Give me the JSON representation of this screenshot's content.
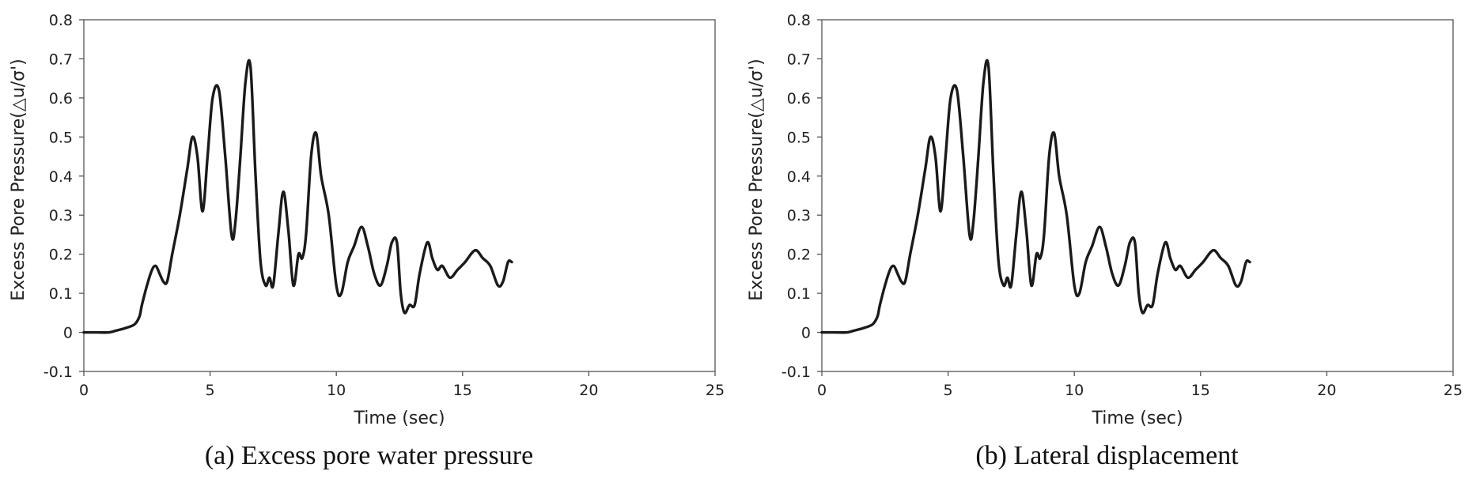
{
  "chart_data": [
    {
      "type": "line",
      "caption": "(a) Excess pore water pressure",
      "xlabel": "Time (sec)",
      "ylabel": "Excess Pore Pressure(△u/σ')",
      "xlim": [
        0,
        25
      ],
      "ylim": [
        -0.1,
        0.8
      ],
      "xticks": [
        "0",
        "5",
        "10",
        "15",
        "20",
        "25"
      ],
      "yticks": [
        "-0.1",
        "0",
        "0.1",
        "0.2",
        "0.3",
        "0.4",
        "0.5",
        "0.6",
        "0.7",
        "0.8"
      ],
      "grid": false,
      "series": [
        {
          "color": "#1a1a1a",
          "x": [
            0,
            0.5,
            1.0,
            1.3,
            1.6,
            2.0,
            2.2,
            2.3,
            2.5,
            2.7,
            2.85,
            3.0,
            3.15,
            3.3,
            3.5,
            3.8,
            4.1,
            4.3,
            4.5,
            4.7,
            4.9,
            5.1,
            5.35,
            5.6,
            5.85,
            6.0,
            6.2,
            6.4,
            6.6,
            6.8,
            7.0,
            7.2,
            7.35,
            7.5,
            7.7,
            7.9,
            8.1,
            8.3,
            8.5,
            8.65,
            8.8,
            9.0,
            9.2,
            9.4,
            9.7,
            10.0,
            10.2,
            10.45,
            10.7,
            11.0,
            11.25,
            11.5,
            11.75,
            12.0,
            12.2,
            12.4,
            12.55,
            12.7,
            12.9,
            13.1,
            13.3,
            13.6,
            13.8,
            14.0,
            14.2,
            14.5,
            14.8,
            15.1,
            15.5,
            15.8,
            16.1,
            16.4,
            16.6,
            16.8,
            16.95
          ],
          "values": [
            0,
            0,
            0,
            0.005,
            0.01,
            0.02,
            0.04,
            0.07,
            0.12,
            0.16,
            0.17,
            0.15,
            0.13,
            0.13,
            0.2,
            0.3,
            0.42,
            0.5,
            0.45,
            0.31,
            0.45,
            0.6,
            0.62,
            0.45,
            0.25,
            0.28,
            0.45,
            0.64,
            0.68,
            0.4,
            0.18,
            0.12,
            0.14,
            0.12,
            0.25,
            0.36,
            0.26,
            0.12,
            0.2,
            0.19,
            0.25,
            0.45,
            0.51,
            0.4,
            0.3,
            0.12,
            0.1,
            0.18,
            0.22,
            0.27,
            0.22,
            0.15,
            0.12,
            0.17,
            0.23,
            0.23,
            0.1,
            0.05,
            0.07,
            0.07,
            0.15,
            0.23,
            0.19,
            0.16,
            0.17,
            0.14,
            0.16,
            0.18,
            0.21,
            0.19,
            0.17,
            0.12,
            0.13,
            0.18,
            0.18
          ]
        }
      ]
    },
    {
      "type": "line",
      "caption": "(b) Lateral displacement",
      "xlabel": "Time (sec)",
      "ylabel": "Excess Pore Pressure(△u/σ')",
      "xlim": [
        0,
        25
      ],
      "ylim": [
        -0.1,
        0.8
      ],
      "xticks": [
        "0",
        "5",
        "10",
        "15",
        "20",
        "25"
      ],
      "yticks": [
        "-0.1",
        "0",
        "0.1",
        "0.2",
        "0.3",
        "0.4",
        "0.5",
        "0.6",
        "0.7",
        "0.8"
      ],
      "grid": false,
      "series": [
        {
          "color": "#1a1a1a",
          "x": [
            0,
            0.5,
            1.0,
            1.3,
            1.6,
            2.0,
            2.2,
            2.3,
            2.5,
            2.7,
            2.85,
            3.0,
            3.15,
            3.3,
            3.5,
            3.8,
            4.1,
            4.3,
            4.5,
            4.7,
            4.9,
            5.1,
            5.35,
            5.6,
            5.85,
            6.0,
            6.2,
            6.4,
            6.6,
            6.8,
            7.0,
            7.2,
            7.35,
            7.5,
            7.7,
            7.9,
            8.1,
            8.3,
            8.5,
            8.65,
            8.8,
            9.0,
            9.2,
            9.4,
            9.7,
            10.0,
            10.2,
            10.45,
            10.7,
            11.0,
            11.25,
            11.5,
            11.75,
            12.0,
            12.2,
            12.4,
            12.55,
            12.7,
            12.9,
            13.1,
            13.3,
            13.6,
            13.8,
            14.0,
            14.2,
            14.5,
            14.8,
            15.1,
            15.5,
            15.8,
            16.1,
            16.4,
            16.6,
            16.8,
            16.95
          ],
          "values": [
            0,
            0,
            0,
            0.005,
            0.01,
            0.02,
            0.04,
            0.07,
            0.12,
            0.16,
            0.17,
            0.15,
            0.13,
            0.13,
            0.2,
            0.3,
            0.42,
            0.5,
            0.45,
            0.31,
            0.45,
            0.6,
            0.62,
            0.45,
            0.25,
            0.28,
            0.45,
            0.64,
            0.68,
            0.4,
            0.18,
            0.12,
            0.14,
            0.12,
            0.25,
            0.36,
            0.26,
            0.12,
            0.2,
            0.19,
            0.25,
            0.45,
            0.51,
            0.4,
            0.3,
            0.12,
            0.1,
            0.18,
            0.22,
            0.27,
            0.22,
            0.15,
            0.12,
            0.17,
            0.23,
            0.23,
            0.1,
            0.05,
            0.07,
            0.07,
            0.15,
            0.23,
            0.19,
            0.16,
            0.17,
            0.14,
            0.16,
            0.18,
            0.21,
            0.19,
            0.17,
            0.12,
            0.13,
            0.18,
            0.18
          ]
        }
      ]
    }
  ]
}
